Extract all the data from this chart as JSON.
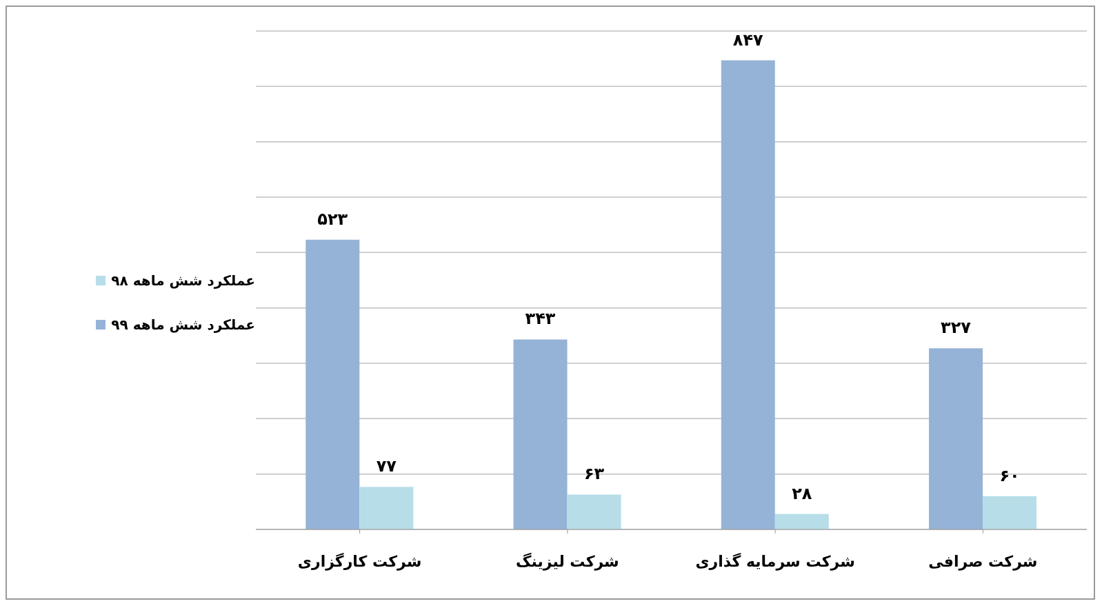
{
  "chart_data": {
    "type": "bar",
    "categories": [
      "شرکت کارگزاری",
      "شرکت لیزینگ",
      "شرکت سرمایه گذاری",
      "شرکت صرافی"
    ],
    "series": [
      {
        "name": "عملکرد شش ماهه ۹۹",
        "color": "#95b3d7",
        "values": [
          523,
          343,
          847,
          327
        ],
        "value_labels": [
          "۵۲۳",
          "۳۴۳",
          "۸۴۷",
          "۳۲۷"
        ]
      },
      {
        "name": "عملکرد شش ماهه ۹۸",
        "color": "#b7dee8",
        "values": [
          77,
          63,
          28,
          60
        ],
        "value_labels": [
          "۷۷",
          "۶۳",
          "۲۸",
          "۶۰"
        ]
      }
    ],
    "ylim": [
      0,
      900
    ],
    "grid": "y",
    "legend": "left",
    "tick_labels": "x"
  }
}
